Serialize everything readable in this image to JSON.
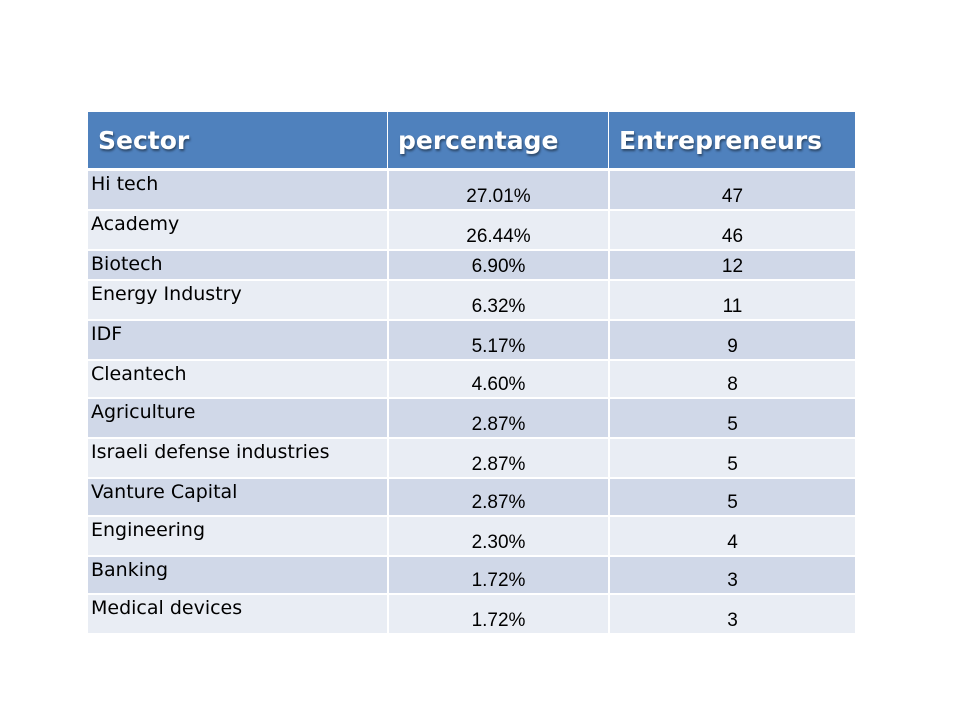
{
  "table": {
    "headers": [
      "Sector",
      "percentage",
      "Entrepreneurs"
    ],
    "rows": [
      {
        "sector": "Hi tech",
        "percentage": "27.01%",
        "entrepreneurs": "47"
      },
      {
        "sector": "Academy",
        "percentage": "26.44%",
        "entrepreneurs": "46"
      },
      {
        "sector": "Biotech",
        "percentage": "6.90%",
        "entrepreneurs": "12"
      },
      {
        "sector": "Energy Industry",
        "percentage": "6.32%",
        "entrepreneurs": "11"
      },
      {
        "sector": "IDF",
        "percentage": "5.17%",
        "entrepreneurs": "9"
      },
      {
        "sector": "Cleantech",
        "percentage": "4.60%",
        "entrepreneurs": "8"
      },
      {
        "sector": "Agriculture",
        "percentage": "2.87%",
        "entrepreneurs": "5"
      },
      {
        "sector": "Israeli defense industries",
        "percentage": "2.87%",
        "entrepreneurs": "5"
      },
      {
        "sector": "Vanture Capital",
        "percentage": "2.87%",
        "entrepreneurs": "5"
      },
      {
        "sector": "Engineering",
        "percentage": "2.30%",
        "entrepreneurs": "4"
      },
      {
        "sector": "Banking",
        "percentage": "1.72%",
        "entrepreneurs": "3"
      },
      {
        "sector": "Medical devices",
        "percentage": "1.72%",
        "entrepreneurs": "3"
      }
    ]
  },
  "colors": {
    "header_bg": "#4f81bd",
    "row_odd": "#d0d8e8",
    "row_even": "#e9edf4"
  }
}
